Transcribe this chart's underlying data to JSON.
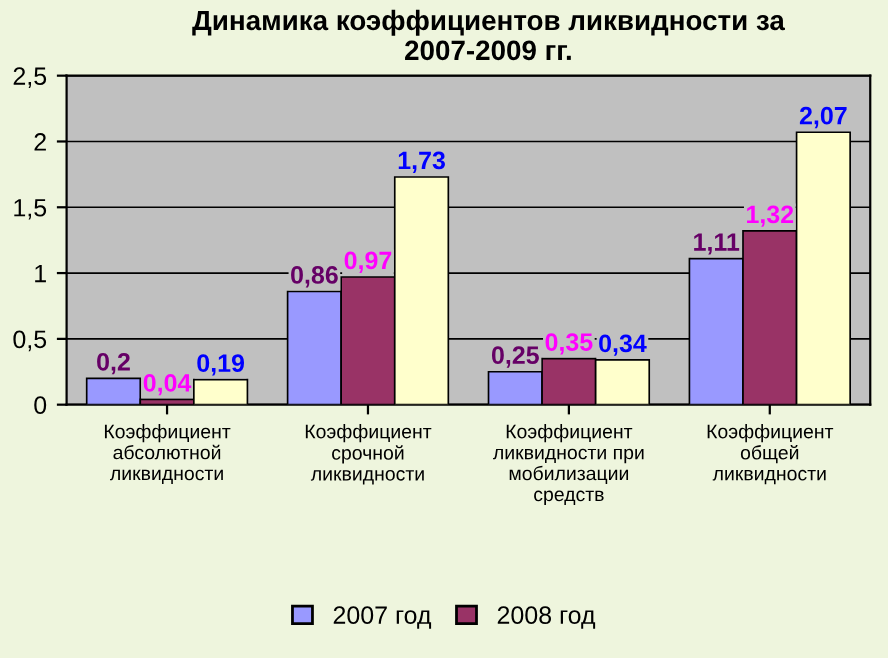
{
  "chart_data": {
    "type": "bar",
    "title": "Динамика коэффициентов ликвидности за\n2007-2009 гг.",
    "categories": [
      "Коэффициент\nабсолютной\nликвидности",
      "Коэффициент\nсрочной\nликвидности",
      "Коэффициент\nликвидности при\nмобилизации\nсредств",
      "Коэффициент\nобщей\nликвидности"
    ],
    "series": [
      {
        "name": "2007 год",
        "color": "#9999ff",
        "values": [
          0.2,
          0.86,
          0.25,
          1.11
        ],
        "value_labels": [
          "0,2",
          "0,86",
          "0,25",
          "1,11"
        ]
      },
      {
        "name": "2008 год",
        "color": "#993366",
        "values": [
          0.04,
          0.97,
          0.35,
          1.32
        ],
        "value_labels": [
          "0,04",
          "0,97",
          "0,35",
          "1,32"
        ]
      },
      {
        "color": "#ffffcc",
        "values": [
          0.19,
          1.73,
          0.34,
          2.07
        ],
        "value_labels": [
          "0,19",
          "1,73",
          "0,34",
          "2,07"
        ]
      }
    ],
    "ylim": [
      0,
      2.5
    ],
    "yticks": [
      0,
      {
        "value": 0.5,
        "label": "0,5"
      },
      1,
      {
        "value": 1.5,
        "label": "1,5"
      },
      2,
      {
        "value": 2.5,
        "label": "2,5"
      }
    ],
    "grid": "y",
    "legend": "bottom"
  }
}
